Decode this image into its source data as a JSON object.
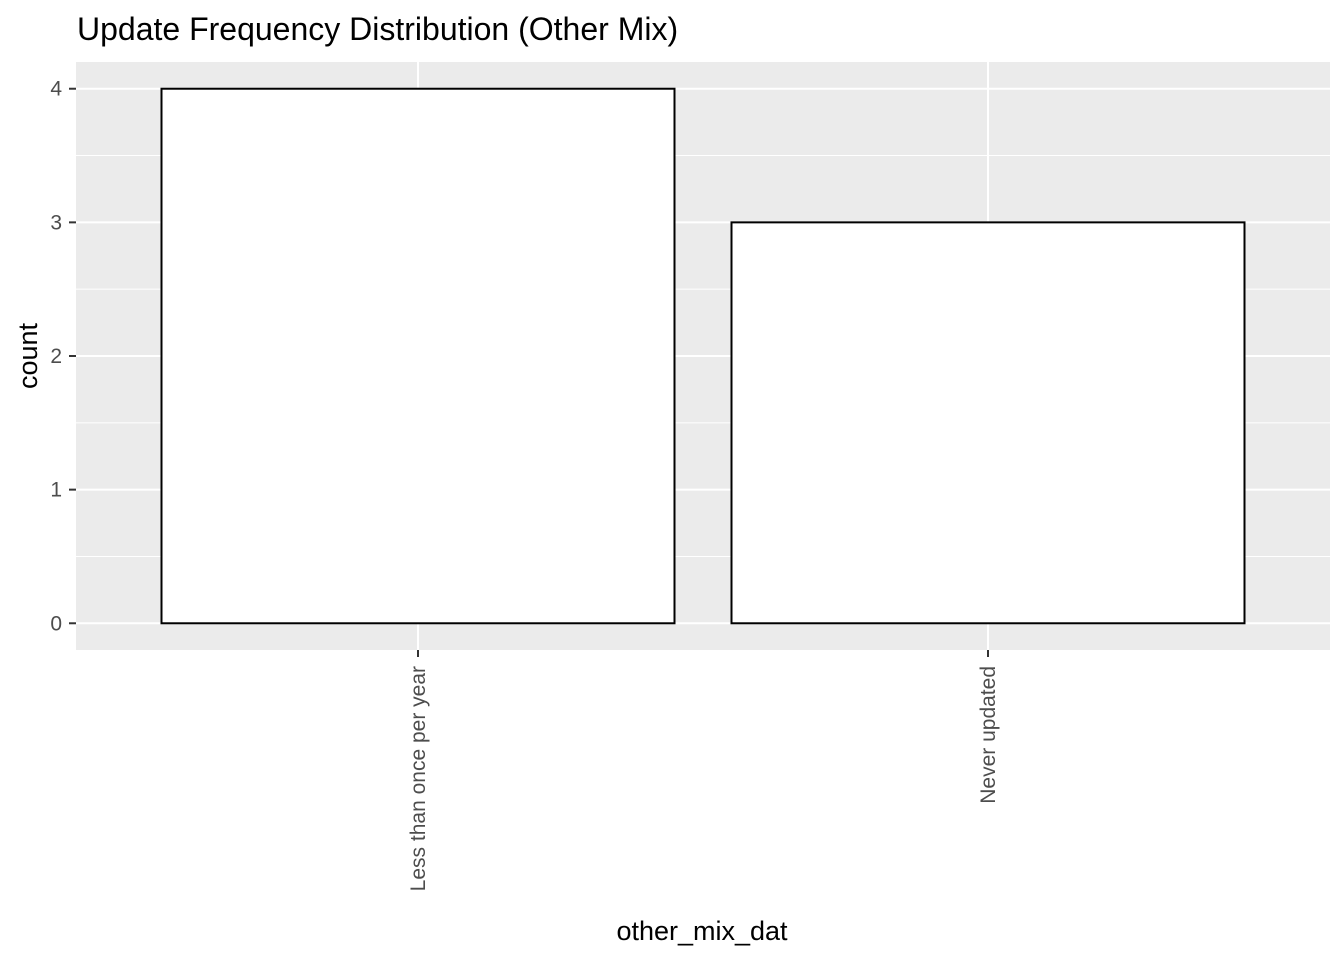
{
  "chart_data": {
    "type": "bar",
    "title": "Update Frequency Distribution (Other Mix)",
    "xlabel": "other_mix_dat",
    "ylabel": "count",
    "categories": [
      "Less than once per year",
      "Never updated"
    ],
    "values": [
      4,
      3
    ],
    "ylim": [
      -0.2,
      4.2
    ],
    "yticks": [
      "0",
      "1",
      "2",
      "3",
      "4"
    ],
    "grid": true,
    "legend": "none",
    "colors": {
      "panel_background": "#ebebeb",
      "grid": "#ffffff",
      "bar_fill": "#ffffff",
      "bar_outline": "#000000",
      "tick_text": "#4d4d4d"
    }
  }
}
